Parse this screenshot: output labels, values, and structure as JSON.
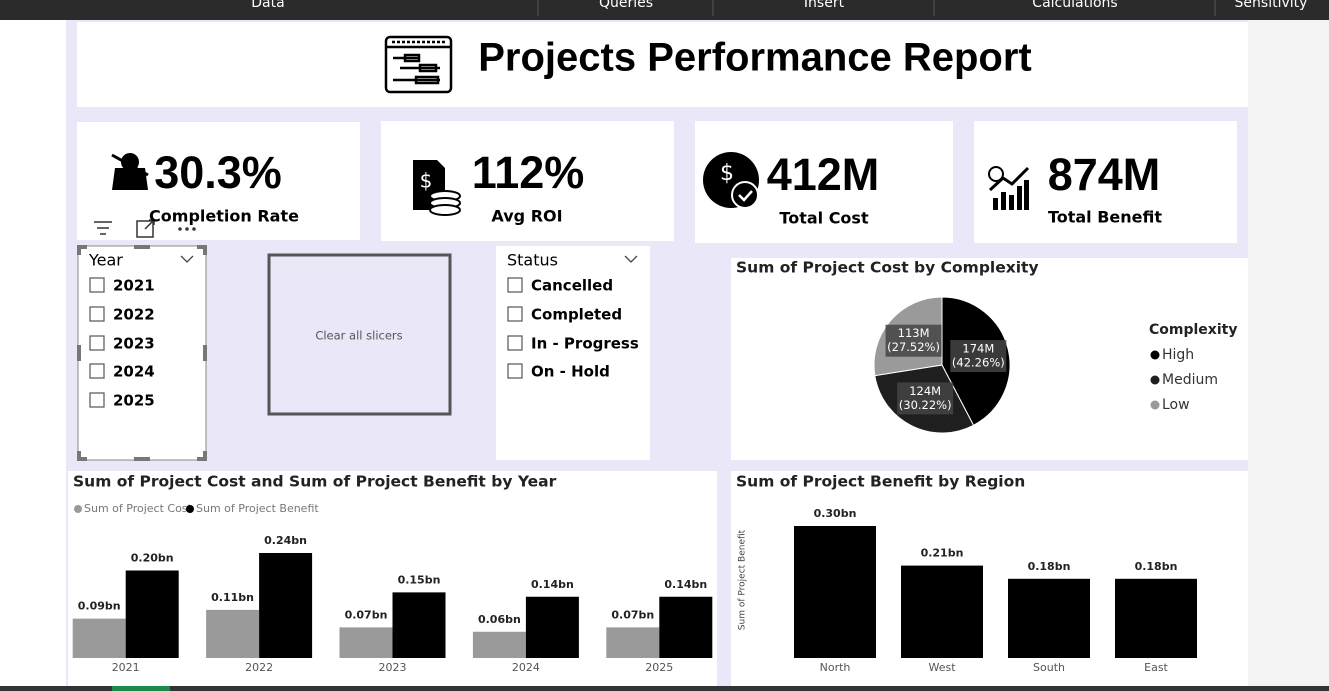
{
  "menu": [
    "Data",
    "Queries",
    "Insert",
    "Calculations",
    "Sensitivity"
  ],
  "header": {
    "title": "Projects Performance Report"
  },
  "kpis": [
    {
      "value": "30.3%",
      "label": "Completion Rate"
    },
    {
      "value": "112%",
      "label": "Avg ROI"
    },
    {
      "value": "412M",
      "label": "Total Cost"
    },
    {
      "value": "874M",
      "label": "Total Benefit"
    }
  ],
  "year_slicer": {
    "title": "Year",
    "items": [
      "2021",
      "2022",
      "2023",
      "2024",
      "2025"
    ]
  },
  "clear_button": {
    "label": "Clear all slicers"
  },
  "status_slicer": {
    "title": "Status",
    "items": [
      "Cancelled",
      "Completed",
      "In - Progress",
      "On - Hold"
    ]
  },
  "chart_data": [
    {
      "type": "pie",
      "title": "Sum of Project Cost by Complexity",
      "legend_title": "Complexity",
      "categories": [
        "High",
        "Medium",
        "Low"
      ],
      "values": [
        174,
        124,
        113
      ],
      "value_labels": [
        "174M",
        "124M",
        "113M"
      ],
      "percent_labels": [
        "(42.26%)",
        "(30.22%)",
        "(27.52%)"
      ],
      "colors": [
        "#000000",
        "#1f1f1f",
        "#9a9a9a"
      ]
    },
    {
      "type": "bar",
      "title": "Sum of Project Cost and Sum of Project Benefit by Year",
      "categories": [
        "2021",
        "2022",
        "2023",
        "2024",
        "2025"
      ],
      "series": [
        {
          "name": "Sum of Project Cost",
          "color": "#9a9a9a",
          "values": [
            0.09,
            0.11,
            0.07,
            0.06,
            0.07
          ],
          "value_labels": [
            "0.09bn",
            "0.11bn",
            "0.07bn",
            "0.06bn",
            "0.07bn"
          ]
        },
        {
          "name": "Sum of Project Benefit",
          "color": "#000000",
          "values": [
            0.2,
            0.24,
            0.15,
            0.14,
            0.14
          ],
          "value_labels": [
            "0.20bn",
            "0.24bn",
            "0.15bn",
            "0.14bn",
            "0.14bn"
          ]
        }
      ]
    },
    {
      "type": "bar",
      "title": "Sum of Project Benefit by Region",
      "y_label": "Sum of Project Benefit",
      "categories": [
        "North",
        "West",
        "South",
        "East"
      ],
      "values": [
        0.3,
        0.21,
        0.18,
        0.18
      ],
      "value_labels": [
        "0.30bn",
        "0.21bn",
        "0.18bn",
        "0.18bn"
      ],
      "color": "#000000"
    }
  ]
}
